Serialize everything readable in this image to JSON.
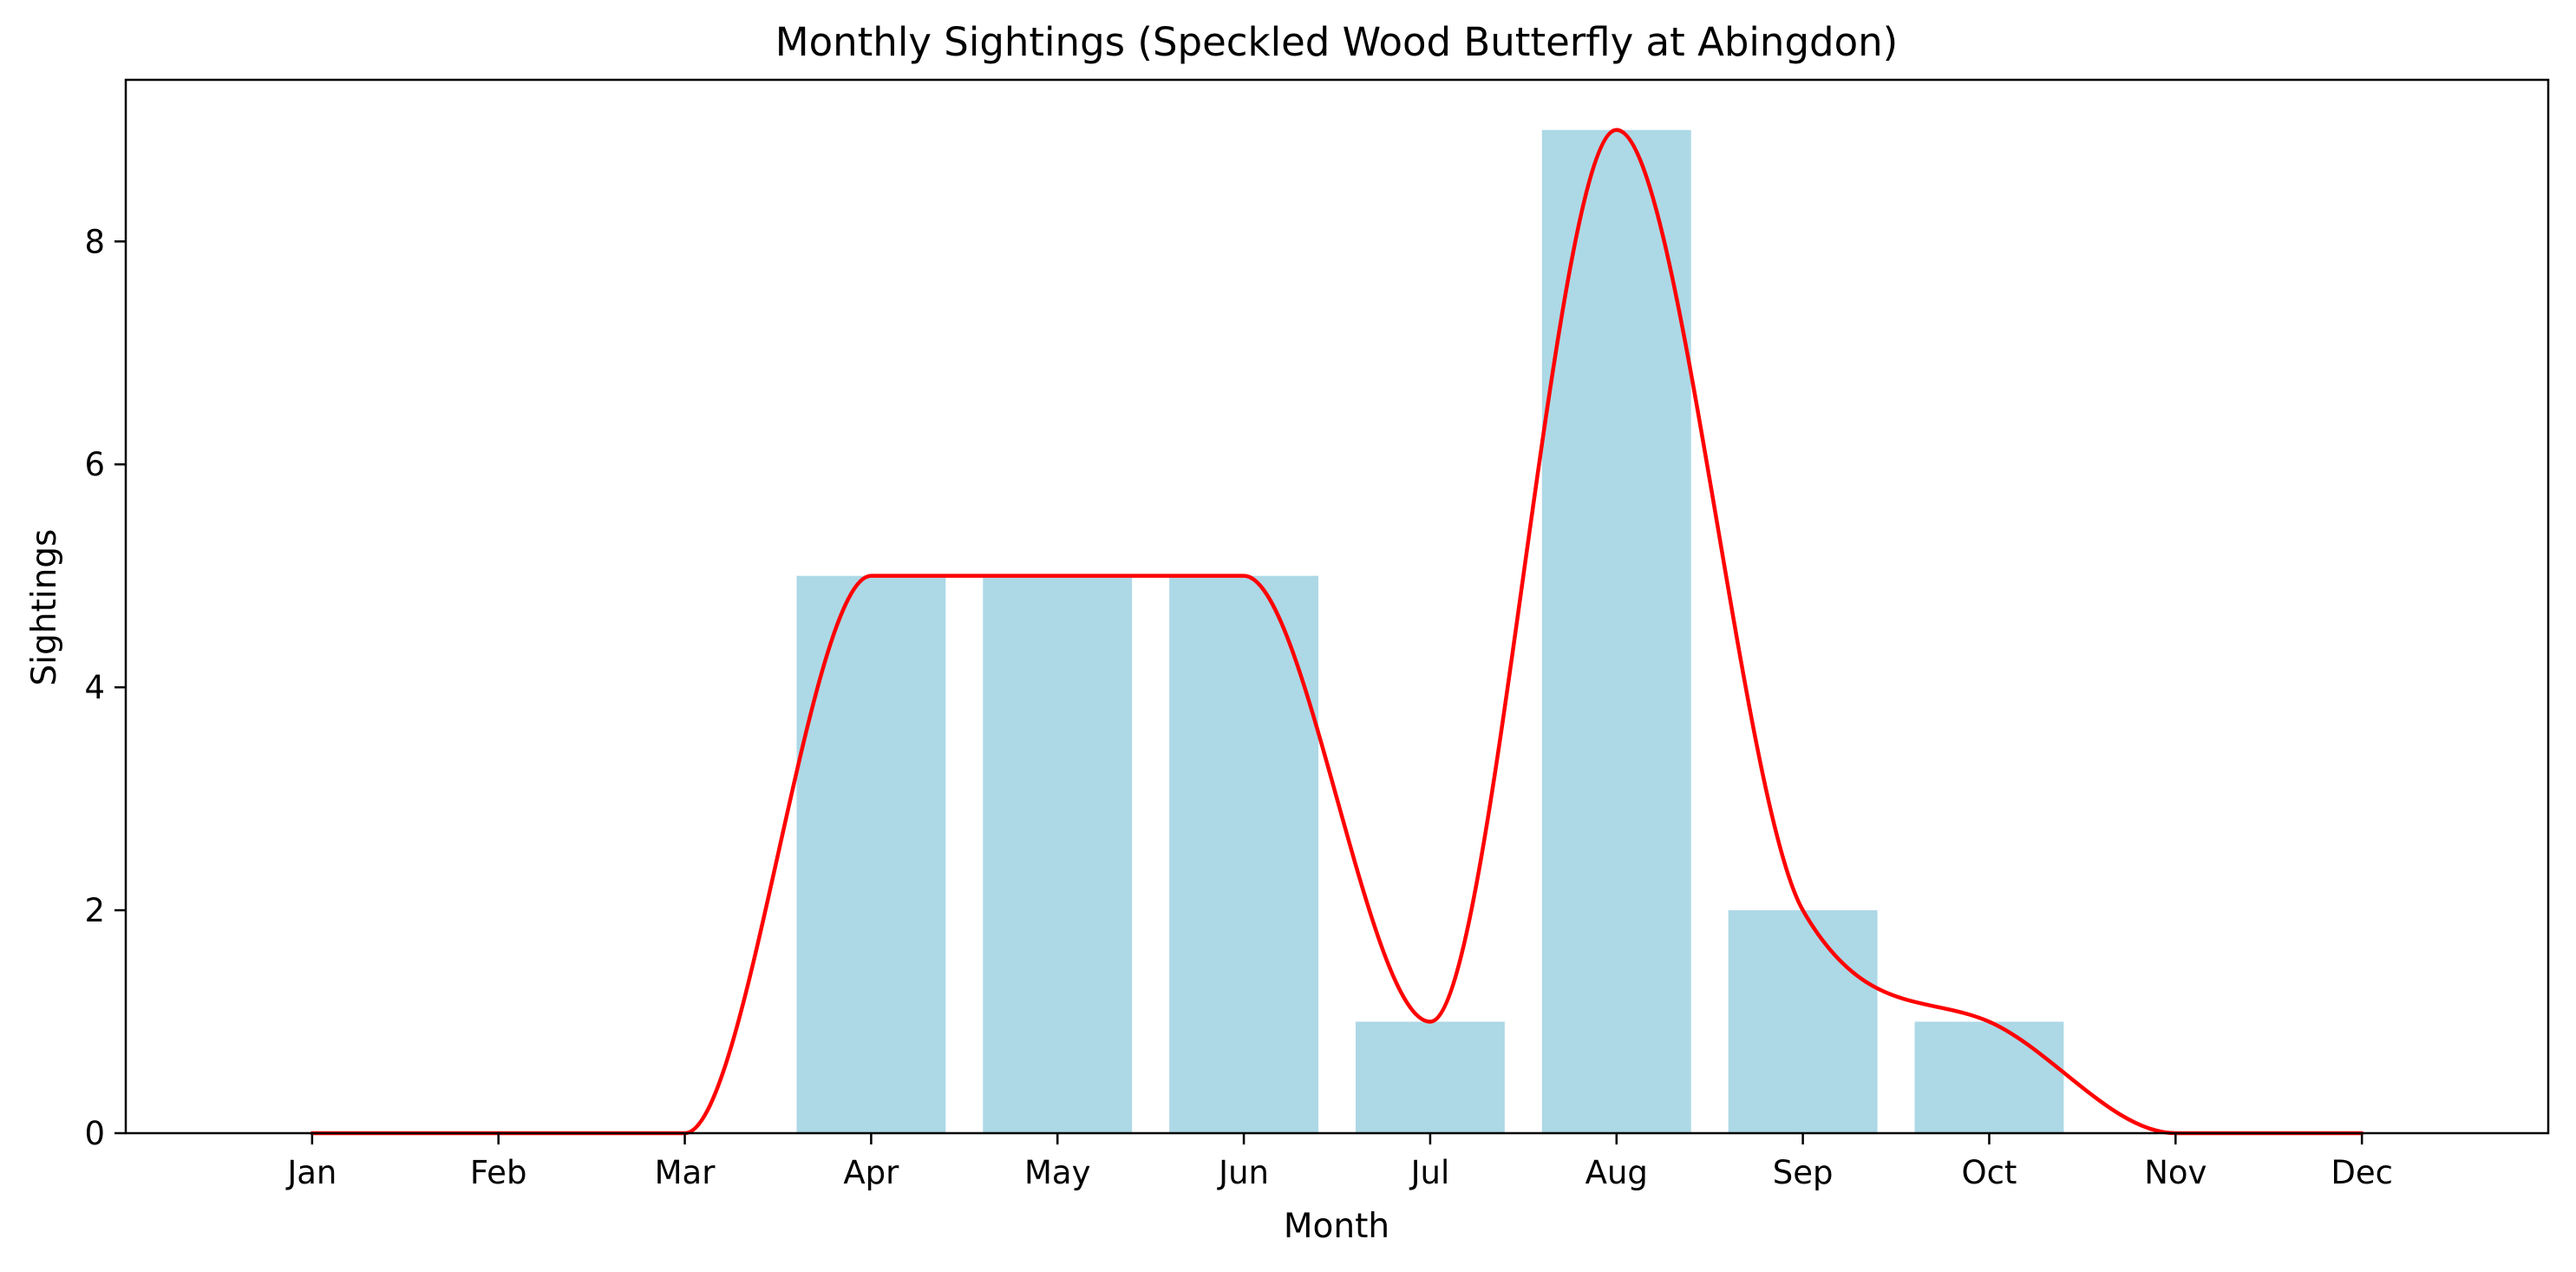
{
  "chart_data": {
    "type": "bar",
    "title": "Monthly Sightings (Speckled Wood Butterfly at Abingdon)",
    "xlabel": "Month",
    "ylabel": "Sightings",
    "categories": [
      "Jan",
      "Feb",
      "Mar",
      "Apr",
      "May",
      "Jun",
      "Jul",
      "Aug",
      "Sep",
      "Oct",
      "Nov",
      "Dec"
    ],
    "values": [
      0,
      0,
      0,
      5,
      5,
      5,
      1,
      9,
      2,
      1,
      0,
      0
    ],
    "ylim": [
      0,
      9.45
    ],
    "yticks": [
      0,
      2,
      4,
      6,
      8
    ],
    "grid": false,
    "overlay": {
      "type": "line",
      "style": "smoothed",
      "values": [
        0,
        0,
        0,
        5,
        5,
        5,
        1,
        9,
        2,
        1,
        0,
        0
      ]
    },
    "colors": {
      "bar": "#add8e6",
      "line": "#ff0000"
    }
  }
}
